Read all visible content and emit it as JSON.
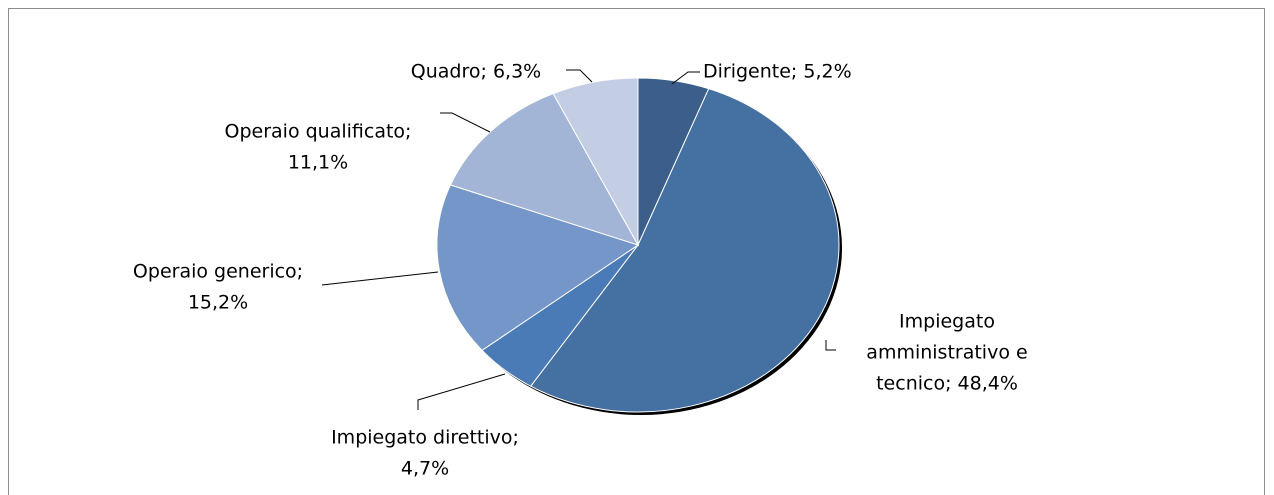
{
  "chart_data": {
    "type": "pie",
    "values": [
      5.2,
      48.4,
      4.7,
      15.2,
      11.1,
      6.3
    ],
    "value_labels": [
      [
        "Dirigente; 5,2%"
      ],
      [
        "Impiegato",
        "amministrativo e",
        "tecnico; 48,4%"
      ],
      [
        "Impiegato direttivo;",
        "4,7%"
      ],
      [
        "Operaio generico;",
        "15,2%"
      ],
      [
        "Operaio qualificato;",
        "11,1%"
      ],
      [
        "Quadro; 6,3%"
      ]
    ],
    "colors": [
      "#3b5e8b",
      "#4470a2",
      "#4a7bb6",
      "#7596c8",
      "#a2b5d7",
      "#c3cde4"
    ]
  }
}
